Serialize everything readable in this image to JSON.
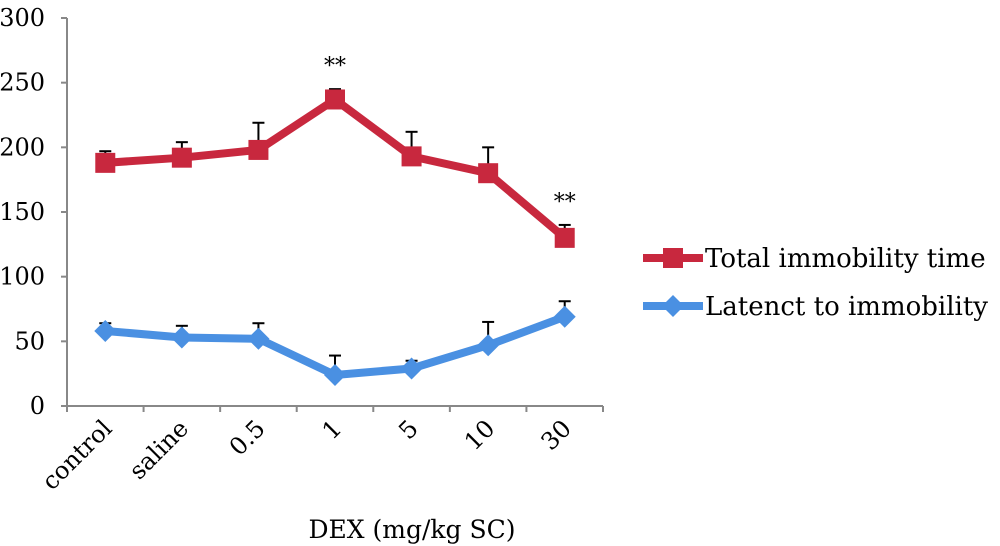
{
  "chart_data": {
    "type": "line",
    "xlabel": "DEX (mg/kg SC)",
    "ylabel": "",
    "ylim": [
      0,
      300
    ],
    "yticks": [
      "0",
      "50",
      "100",
      "150",
      "200",
      "250",
      "300"
    ],
    "categories": [
      "control",
      "saline",
      "0.5",
      "1",
      "5",
      "10",
      "30"
    ],
    "grid": false,
    "legend_position": "right",
    "series": [
      {
        "name": "Total immobility time",
        "color": "#c8283e",
        "marker": "square",
        "values": [
          188,
          192,
          198,
          237,
          193,
          180,
          130
        ],
        "errors": [
          9,
          12,
          21,
          8,
          19,
          20,
          10
        ]
      },
      {
        "name": "Latenct to immobility",
        "color": "#4a90e2",
        "marker": "diamond",
        "values": [
          58,
          53,
          52,
          24,
          29,
          47,
          69
        ],
        "errors": [
          6,
          9,
          12,
          15,
          6,
          18,
          12
        ]
      }
    ],
    "annotations": [
      {
        "category": "1",
        "text": "**"
      },
      {
        "category": "30",
        "text": "**"
      }
    ]
  }
}
